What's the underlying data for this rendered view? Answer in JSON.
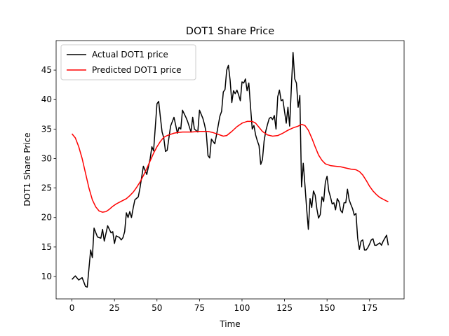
{
  "chart_data": {
    "type": "line",
    "title": "DOT1 Share Price",
    "x_label": "Time",
    "y_label": "DOT1 Share Price",
    "xlim": [
      -9.3,
      195.3
    ],
    "ylim": [
      6.2,
      50.0
    ],
    "xticks": [
      0,
      25,
      50,
      75,
      100,
      125,
      150,
      175
    ],
    "yticks": [
      10,
      15,
      20,
      25,
      30,
      35,
      40,
      45
    ],
    "legend": "upper left",
    "series": [
      {
        "name": "Actual DOT1 price",
        "color": "#000000",
        "x": [
          0,
          2,
          4,
          6,
          8,
          9,
          11,
          12,
          13,
          15,
          17,
          18,
          19,
          21,
          23,
          24,
          25,
          26,
          28,
          29,
          30,
          31,
          32,
          33,
          34,
          35,
          36,
          37,
          39,
          40,
          42,
          44,
          46,
          47,
          48,
          50,
          51,
          52,
          53,
          54,
          55,
          56,
          58,
          60,
          62,
          63,
          64,
          65,
          67,
          68,
          70,
          71,
          72,
          74,
          75,
          77,
          78,
          79,
          80,
          81,
          82,
          84,
          85,
          87,
          88,
          89,
          90,
          91,
          92,
          93,
          94,
          95,
          96,
          97,
          98,
          99,
          100,
          101,
          102,
          103,
          104,
          105,
          106,
          107,
          108,
          109,
          110,
          111,
          112,
          113,
          114,
          115,
          116,
          117,
          118,
          119,
          120,
          121,
          122,
          123,
          124,
          125,
          126,
          127,
          128,
          129,
          130,
          131,
          132,
          133,
          134,
          135,
          136,
          137,
          138,
          139,
          140,
          141,
          142,
          143,
          144,
          145,
          146,
          147,
          148,
          149,
          150,
          151,
          152,
          153,
          154,
          155,
          156,
          157,
          158,
          159,
          160,
          161,
          162,
          163,
          164,
          165,
          166,
          167,
          168,
          169,
          170,
          171,
          172,
          173,
          174,
          175,
          176,
          177,
          178,
          179,
          181,
          182,
          183,
          184,
          185,
          186
        ],
        "values": [
          9.5,
          10.1,
          9.4,
          9.8,
          8.3,
          8.2,
          14.5,
          13.2,
          18.2,
          16.7,
          16.5,
          18,
          16,
          18.6,
          17.4,
          17.6,
          15.6,
          16.9,
          16.6,
          16.2,
          16.6,
          17.6,
          20.8,
          20,
          21,
          20,
          21.6,
          23,
          23.5,
          25,
          28.7,
          27.3,
          30,
          32,
          31.3,
          39.3,
          39.7,
          37,
          34.5,
          33.5,
          31.2,
          31.4,
          35.5,
          37,
          34.3,
          35.3,
          35,
          38.2,
          37,
          36.3,
          34.5,
          37,
          35,
          34.5,
          38.2,
          36.8,
          35.7,
          34.3,
          30.5,
          30.1,
          33.3,
          32.5,
          34,
          37.2,
          38,
          41.3,
          41.7,
          45,
          45.8,
          43.3,
          39.5,
          41.5,
          41,
          41.6,
          40.8,
          39.8,
          43,
          42.8,
          43.5,
          41.5,
          42.8,
          38.8,
          35,
          35.6,
          34,
          33,
          32.2,
          29,
          29.8,
          33,
          34.7,
          35.8,
          36.8,
          37,
          36.6,
          37.3,
          35,
          40.5,
          41.6,
          39.8,
          40,
          38,
          36,
          38.7,
          35.5,
          42,
          48,
          43.5,
          42.8,
          38.7,
          40.7,
          25.2,
          29.2,
          25.5,
          21.5,
          18,
          23.2,
          21.7,
          24.5,
          23.8,
          21.5,
          19.9,
          20.5,
          23.5,
          22.7,
          26,
          27,
          24.5,
          23.5,
          22.3,
          22.5,
          21.3,
          23.2,
          22.7,
          21.2,
          20.8,
          22.5,
          22.5,
          24.8,
          23,
          22.2,
          21.5,
          20.4,
          20.7,
          16.5,
          14.6,
          16,
          16.2,
          14.5,
          14.5,
          14.9,
          15.5,
          16.2,
          16.4,
          15.3,
          15.3,
          15.7,
          15.3,
          16,
          16.5,
          17,
          15.3
        ]
      },
      {
        "name": "Predicted DOT1 price",
        "color": "#ff0000",
        "x": [
          0,
          2,
          4,
          6,
          8,
          10,
          12,
          14,
          16,
          18,
          20,
          22,
          24,
          26,
          28,
          30,
          32,
          34,
          36,
          38,
          40,
          42,
          44,
          46,
          48,
          50,
          52,
          54,
          56,
          58,
          60,
          62,
          65,
          70,
          75,
          80,
          83,
          86,
          89,
          91,
          94,
          97,
          100,
          103,
          106,
          108,
          110,
          112,
          115,
          118,
          121,
          124,
          127,
          130,
          133,
          135,
          137,
          139,
          141,
          143,
          145,
          147,
          149,
          152,
          155,
          158,
          161,
          164,
          167,
          169,
          171,
          173,
          175,
          177,
          179,
          181,
          183,
          185,
          186
        ],
        "values": [
          34.2,
          33.5,
          32,
          30,
          27.5,
          25,
          23,
          21.8,
          21.1,
          20.9,
          21,
          21.4,
          21.9,
          22.3,
          22.6,
          22.9,
          23.2,
          23.7,
          24.3,
          25.1,
          26,
          27.1,
          28.3,
          29.6,
          30.9,
          32,
          32.9,
          33.6,
          33.9,
          34.1,
          34.3,
          34.4,
          34.5,
          34.5,
          34.6,
          34.6,
          34.4,
          34.1,
          33.8,
          33.9,
          34.6,
          35.4,
          36,
          36.3,
          36.3,
          36,
          35.3,
          34.6,
          34,
          33.8,
          33.9,
          34.3,
          34.8,
          35.2,
          35.5,
          35.8,
          35.6,
          34.8,
          33.5,
          32,
          30.6,
          29.7,
          29.1,
          28.8,
          28.7,
          28.6,
          28.4,
          28.2,
          28.1,
          27.8,
          27.2,
          26.3,
          25.3,
          24.5,
          23.9,
          23.4,
          23.1,
          22.8,
          22.7
        ]
      }
    ]
  }
}
